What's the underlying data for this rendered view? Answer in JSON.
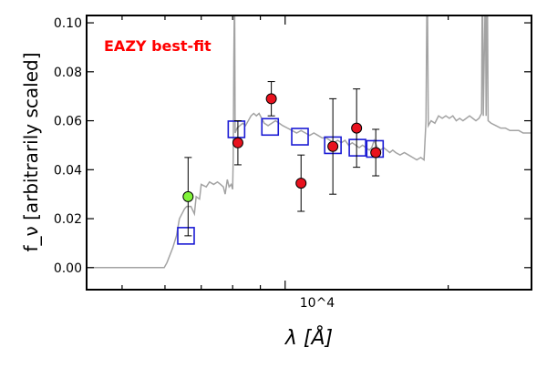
{
  "chart_data": {
    "type": "scatter",
    "title": "",
    "xlabel": "λ [Å]",
    "ylabel": "f_ν [arbitrarily scaled]",
    "x_scale": "log",
    "xlim": [
      4300,
      28500
    ],
    "ylim": [
      -0.009,
      0.103
    ],
    "x_tick_label": "10^4",
    "y_ticks": [
      0.0,
      0.02,
      0.04,
      0.06,
      0.08,
      0.1
    ],
    "y_tick_labels": [
      "0.00",
      "0.02",
      "0.04",
      "0.06",
      "0.08",
      "0.10"
    ],
    "annotation": "EAZY best-fit",
    "grid": false,
    "colors": {
      "template": "#a3a3a3",
      "model_box": "#1a1ad4",
      "observed": "#e8121e",
      "highlight": "#80f23a",
      "annotation": "#ff0000"
    },
    "template_sed": [
      [
        4300,
        0.0
      ],
      [
        5980,
        0.0
      ],
      [
        6050,
        0.002
      ],
      [
        6200,
        0.008
      ],
      [
        6300,
        0.013
      ],
      [
        6380,
        0.02
      ],
      [
        6450,
        0.022
      ],
      [
        6520,
        0.024
      ],
      [
        6580,
        0.025
      ],
      [
        6700,
        0.025
      ],
      [
        6800,
        0.022
      ],
      [
        6850,
        0.029
      ],
      [
        6950,
        0.028
      ],
      [
        7000,
        0.034
      ],
      [
        7150,
        0.033
      ],
      [
        7250,
        0.035
      ],
      [
        7380,
        0.034
      ],
      [
        7500,
        0.035
      ],
      [
        7600,
        0.034
      ],
      [
        7690,
        0.033
      ],
      [
        7750,
        0.03
      ],
      [
        7820,
        0.036
      ],
      [
        7880,
        0.033
      ],
      [
        7950,
        0.034
      ],
      [
        8000,
        0.032
      ],
      [
        8020,
        0.045
      ],
      [
        8040,
        0.085
      ],
      [
        8055,
        0.103
      ],
      [
        8070,
        0.103
      ],
      [
        8085,
        0.055
      ],
      [
        8150,
        0.057
      ],
      [
        8250,
        0.058
      ],
      [
        8350,
        0.059
      ],
      [
        8450,
        0.058
      ],
      [
        8550,
        0.06
      ],
      [
        8650,
        0.062
      ],
      [
        8750,
        0.063
      ],
      [
        8850,
        0.062
      ],
      [
        8950,
        0.063
      ],
      [
        9050,
        0.061
      ],
      [
        9150,
        0.059
      ],
      [
        9300,
        0.058
      ],
      [
        9450,
        0.059
      ],
      [
        9600,
        0.06
      ],
      [
        9750,
        0.059
      ],
      [
        9900,
        0.058
      ],
      [
        10100,
        0.057
      ],
      [
        10300,
        0.056
      ],
      [
        10500,
        0.055
      ],
      [
        10700,
        0.056
      ],
      [
        10900,
        0.055
      ],
      [
        11100,
        0.054
      ],
      [
        11300,
        0.055
      ],
      [
        11500,
        0.054
      ],
      [
        11700,
        0.053
      ],
      [
        11900,
        0.053
      ],
      [
        12100,
        0.052
      ],
      [
        12300,
        0.051
      ],
      [
        12500,
        0.052
      ],
      [
        12700,
        0.051
      ],
      [
        12900,
        0.052
      ],
      [
        13100,
        0.05
      ],
      [
        13300,
        0.051
      ],
      [
        13500,
        0.05
      ],
      [
        13700,
        0.049
      ],
      [
        13900,
        0.05
      ],
      [
        14100,
        0.049
      ],
      [
        14300,
        0.048
      ],
      [
        14450,
        0.049
      ],
      [
        14600,
        0.052
      ],
      [
        14800,
        0.049
      ],
      [
        15000,
        0.048
      ],
      [
        15200,
        0.049
      ],
      [
        15400,
        0.048
      ],
      [
        15600,
        0.047
      ],
      [
        15800,
        0.048
      ],
      [
        16000,
        0.047
      ],
      [
        16300,
        0.046
      ],
      [
        16600,
        0.047
      ],
      [
        16900,
        0.046
      ],
      [
        17200,
        0.045
      ],
      [
        17500,
        0.044
      ],
      [
        17800,
        0.045
      ],
      [
        18050,
        0.044
      ],
      [
        18200,
        0.06
      ],
      [
        18260,
        0.103
      ],
      [
        18320,
        0.103
      ],
      [
        18380,
        0.058
      ],
      [
        18600,
        0.06
      ],
      [
        18900,
        0.059
      ],
      [
        19200,
        0.062
      ],
      [
        19500,
        0.061
      ],
      [
        19800,
        0.062
      ],
      [
        20100,
        0.061
      ],
      [
        20400,
        0.062
      ],
      [
        20700,
        0.06
      ],
      [
        21000,
        0.061
      ],
      [
        21300,
        0.06
      ],
      [
        21600,
        0.061
      ],
      [
        21900,
        0.062
      ],
      [
        22200,
        0.061
      ],
      [
        22500,
        0.06
      ],
      [
        22800,
        0.061
      ],
      [
        23050,
        0.063
      ],
      [
        23100,
        0.103
      ],
      [
        23160,
        0.103
      ],
      [
        23220,
        0.062
      ],
      [
        23380,
        0.103
      ],
      [
        23440,
        0.103
      ],
      [
        23500,
        0.062
      ],
      [
        23580,
        0.103
      ],
      [
        23640,
        0.103
      ],
      [
        23700,
        0.06
      ],
      [
        24000,
        0.059
      ],
      [
        24500,
        0.058
      ],
      [
        25000,
        0.057
      ],
      [
        25500,
        0.057
      ],
      [
        26000,
        0.056
      ],
      [
        26500,
        0.056
      ],
      [
        27000,
        0.056
      ],
      [
        27500,
        0.055
      ],
      [
        28000,
        0.055
      ],
      [
        28500,
        0.055
      ]
    ],
    "model_photometry": [
      {
        "x": 6560,
        "y": 0.013
      },
      {
        "x": 8130,
        "y": 0.0565
      },
      {
        "x": 9380,
        "y": 0.0575
      },
      {
        "x": 10650,
        "y": 0.0535
      },
      {
        "x": 12250,
        "y": 0.05
      },
      {
        "x": 13600,
        "y": 0.049
      },
      {
        "x": 14650,
        "y": 0.0485
      }
    ],
    "observed_photometry": [
      {
        "x": 6620,
        "y": 0.029,
        "yerr_lo": 0.016,
        "yerr_hi": 0.016,
        "highlight": true
      },
      {
        "x": 8180,
        "y": 0.051,
        "yerr_lo": 0.009,
        "yerr_hi": 0.009,
        "highlight": false
      },
      {
        "x": 9430,
        "y": 0.069,
        "yerr_lo": 0.007,
        "yerr_hi": 0.007,
        "highlight": false
      },
      {
        "x": 10700,
        "y": 0.0345,
        "yerr_lo": 0.0115,
        "yerr_hi": 0.0115,
        "highlight": false
      },
      {
        "x": 12250,
        "y": 0.0495,
        "yerr_lo": 0.0195,
        "yerr_hi": 0.0195,
        "highlight": false
      },
      {
        "x": 13550,
        "y": 0.057,
        "yerr_lo": 0.016,
        "yerr_hi": 0.016,
        "highlight": false
      },
      {
        "x": 14700,
        "y": 0.047,
        "yerr_lo": 0.0095,
        "yerr_hi": 0.0095,
        "highlight": false
      }
    ]
  }
}
